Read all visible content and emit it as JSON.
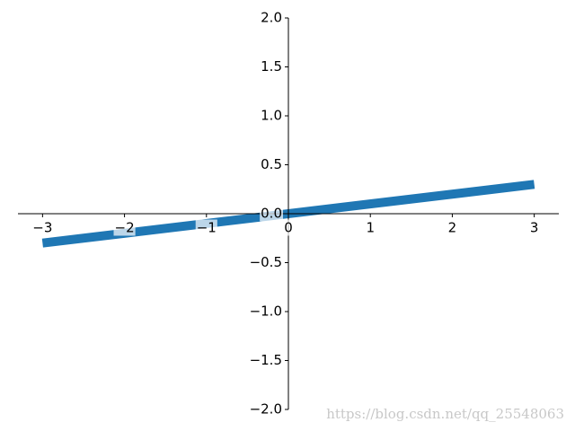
{
  "chart_data": {
    "type": "line",
    "x": [
      -3,
      3
    ],
    "series": [
      {
        "color": "#1f77b4",
        "values": [
          -0.3,
          0.3
        ]
      }
    ],
    "xlim": [
      -3.3,
      3.3
    ],
    "ylim": [
      -2,
      2
    ],
    "xticks": [
      {
        "value": -3,
        "label": "−3"
      },
      {
        "value": -2,
        "label": "−2"
      },
      {
        "value": -1,
        "label": "−1"
      },
      0,
      1,
      2,
      3
    ],
    "yticks": [
      {
        "value": -2,
        "label": "−2.0"
      },
      {
        "value": -1.5,
        "label": "−1.5"
      },
      {
        "value": -1,
        "label": "−1.0"
      },
      {
        "value": -0.5,
        "label": "−0.5"
      },
      {
        "value": 0,
        "label": "0.0"
      },
      {
        "value": 0.5,
        "label": "0.5"
      },
      {
        "value": 1,
        "label": "1.0"
      },
      {
        "value": 1.5,
        "label": "1.5"
      },
      {
        "value": 2,
        "label": "2.0"
      }
    ],
    "watermark": "https://blog.csdn.net/qq_25548063"
  }
}
